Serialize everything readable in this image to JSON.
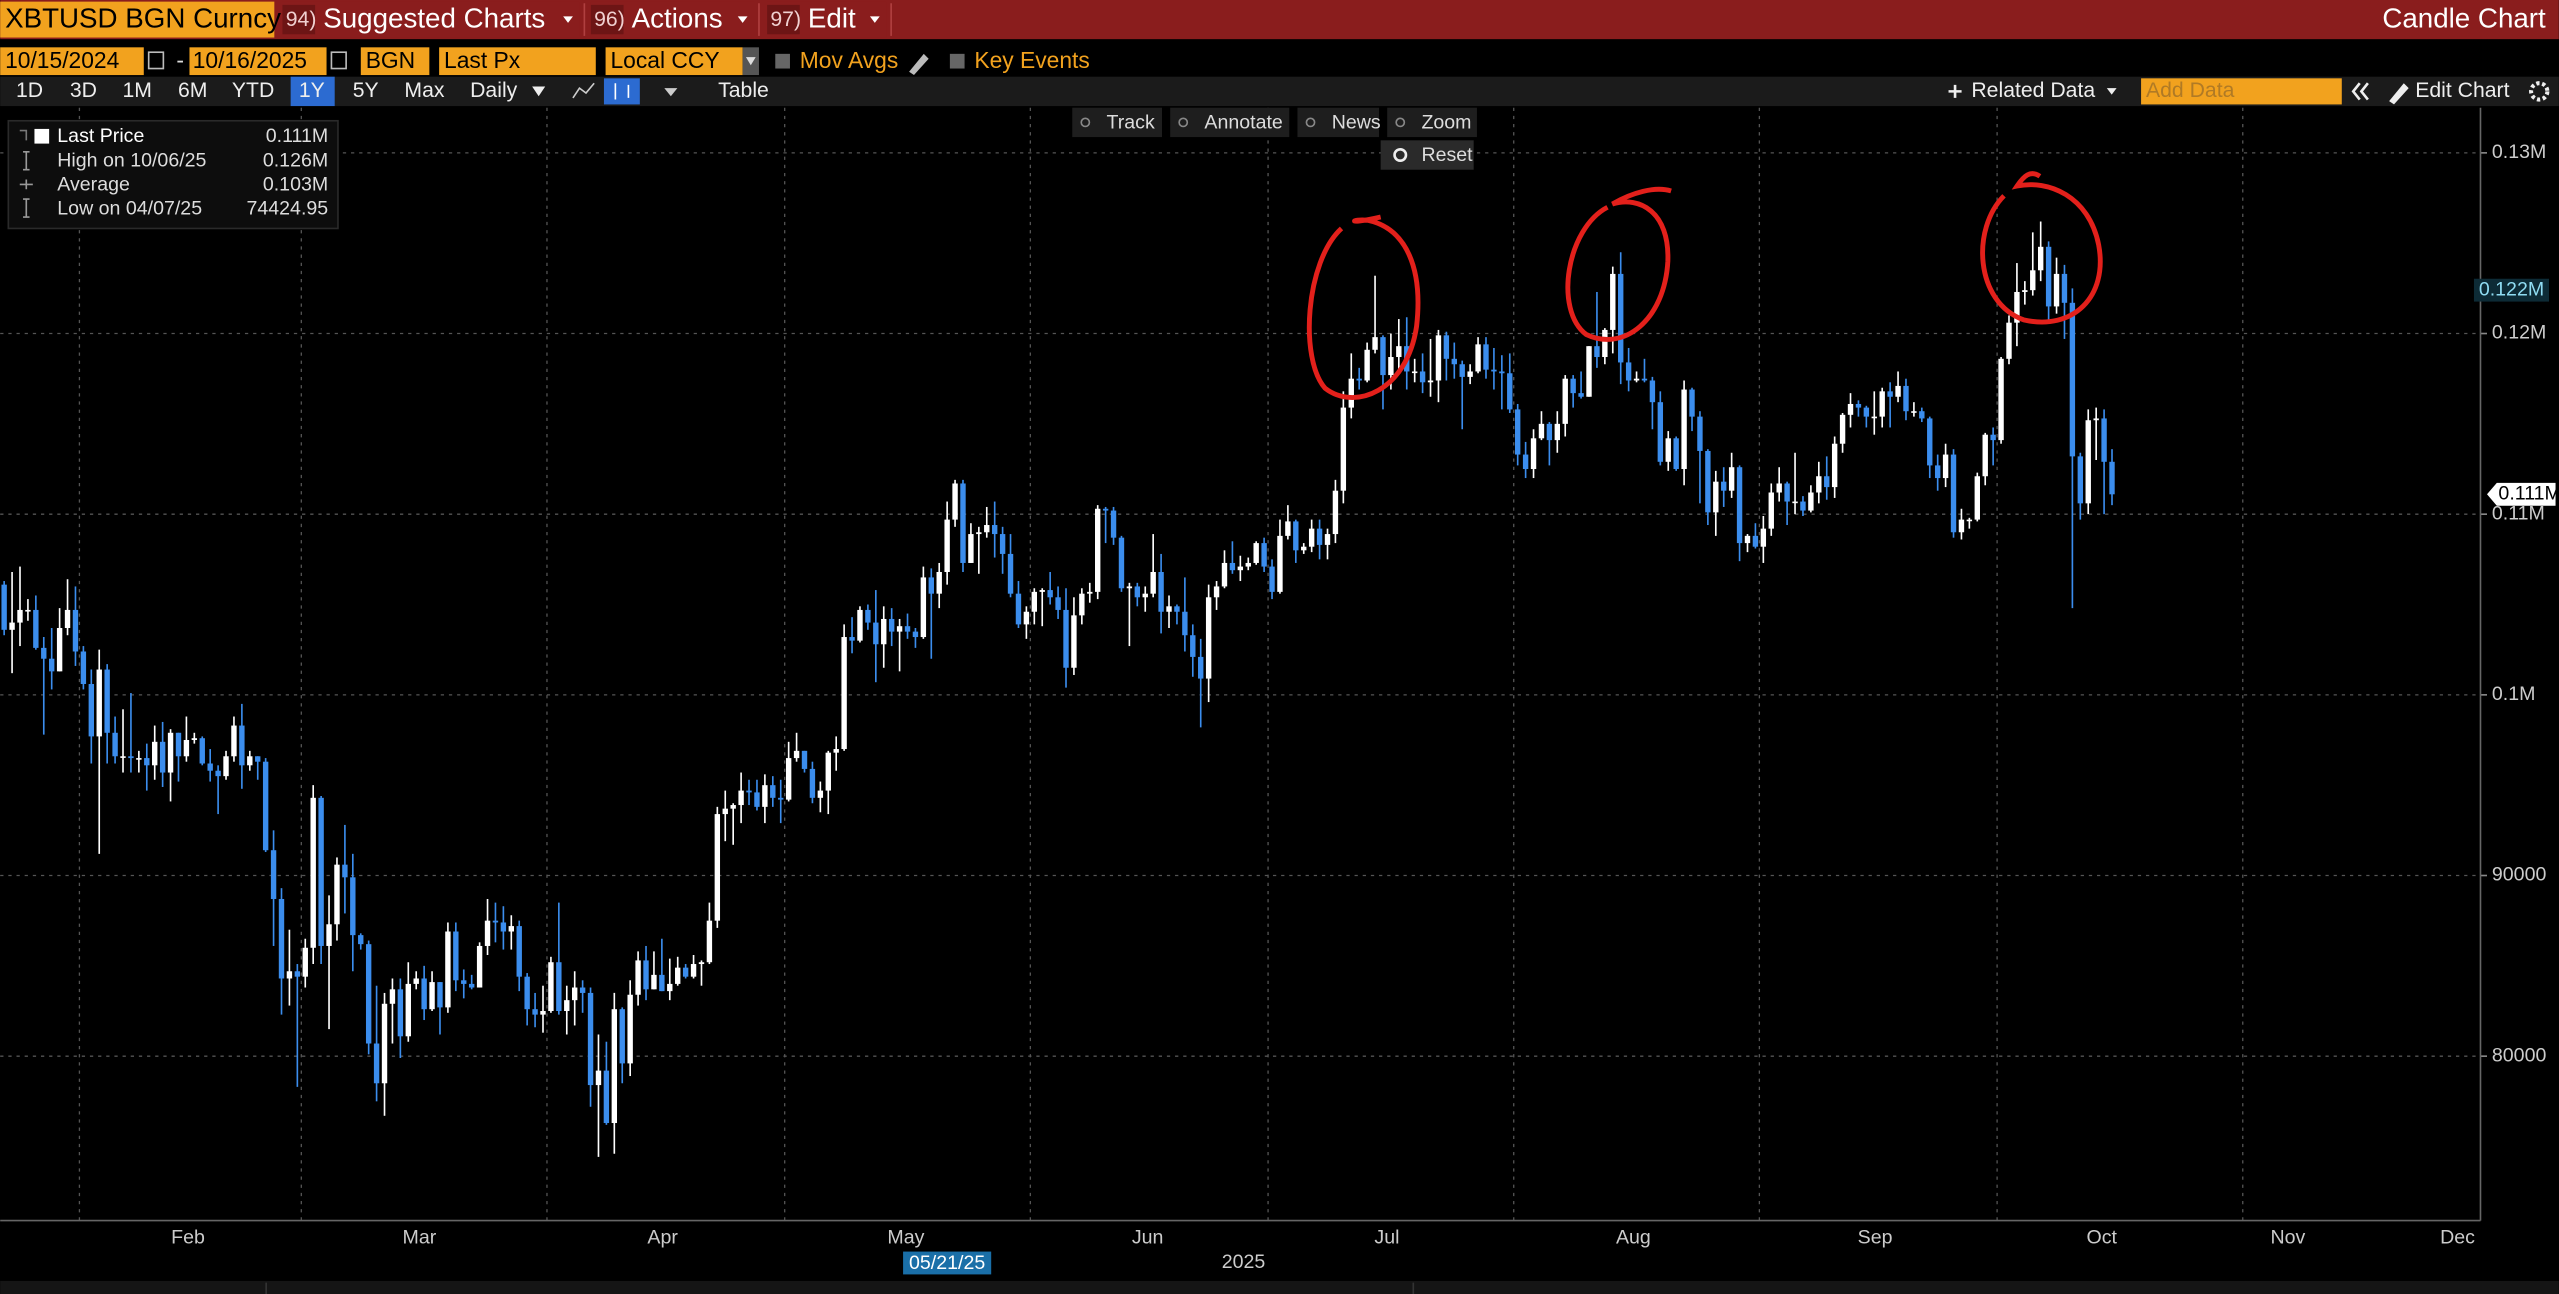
{
  "header": {
    "ticker": "XBTUSD BGN Curncy",
    "menus": [
      {
        "num": "94)",
        "label": "Suggested Charts"
      },
      {
        "num": "96)",
        "label": "Actions"
      },
      {
        "num": "97)",
        "label": "Edit"
      }
    ],
    "chart_kind": "Candle Chart"
  },
  "controls": {
    "start_date": "10/15/2024",
    "date_separator": "-",
    "end_date": "10/16/2025",
    "source": "BGN",
    "field": "Last Px",
    "currency": "Local CCY",
    "options": [
      "Mov Avgs",
      "Key Events"
    ],
    "periods": [
      "1D",
      "3D",
      "1M",
      "6M",
      "YTD",
      "1Y",
      "5Y",
      "Max"
    ],
    "frequency": "Daily",
    "table": "Table",
    "related": "Related Data",
    "add_data": "Add Data",
    "edit_chart": "Edit Chart",
    "chart_tools": [
      "Track",
      "Annotate",
      "News",
      "Zoom"
    ],
    "reset": "Reset"
  },
  "legend": {
    "items": [
      {
        "label": "Last Price",
        "value": "0.111M"
      },
      {
        "label": "High on 10/06/25",
        "value": "0.126M"
      },
      {
        "label": "Average",
        "value": "0.103M"
      },
      {
        "label": "Low on 04/07/25",
        "value": "74424.95"
      }
    ]
  },
  "chart_data": {
    "type": "candlestick",
    "up_color": "#ffffff",
    "down_color": "#3b8ded",
    "grid": true,
    "xlim": [
      -0.5,
      312.5
    ],
    "xgrid": [
      9.5,
      37.5,
      68.5,
      98.5,
      129.5,
      159.5,
      190.5,
      221.5,
      251.5,
      282.5
    ],
    "xticks": [
      {
        "value": 23.2,
        "label": "Feb"
      },
      {
        "value": 52.4,
        "label": "Mar"
      },
      {
        "value": 83.1,
        "label": "Apr"
      },
      {
        "value": 113.8,
        "label": "May"
      },
      {
        "value": 144.3,
        "label": "Jun"
      },
      {
        "value": 174.5,
        "label": "Jul"
      },
      {
        "value": 205.6,
        "label": "Aug"
      },
      {
        "value": 236.1,
        "label": "Sep"
      },
      {
        "value": 264.7,
        "label": "Oct"
      },
      {
        "value": 288.2,
        "label": "Nov"
      },
      {
        "value": 309.6,
        "label": "Dec"
      }
    ],
    "x_year_label": {
      "value": 156.4,
      "label": "2025"
    },
    "cursor": {
      "value": 119,
      "label": "05/21/25"
    },
    "ylim": [
      70900,
      132500
    ],
    "yticks": [
      {
        "value": 130000,
        "label": "0.13M"
      },
      {
        "value": 120000,
        "label": "0.12M"
      },
      {
        "value": 110000,
        "label": "0.11M"
      },
      {
        "value": 100000,
        "label": "0.1M"
      },
      90000,
      80000
    ],
    "last_marker": {
      "value": 111100,
      "label": "0.111M"
    },
    "cursor_marker": {
      "value": 122400,
      "label": "0.122M"
    },
    "open": [
      106100,
      103600,
      104000,
      104700,
      104700,
      102600,
      102000,
      101300,
      103700,
      104700,
      102400,
      100600,
      97700,
      101400,
      97900,
      96600,
      96600,
      96500,
      96500,
      96100,
      97400,
      95700,
      97900,
      96600,
      97500,
      97600,
      96200,
      95800,
      95500,
      96600,
      98300,
      96100,
      96600,
      96300,
      91400,
      88700,
      84300,
      84700,
      84400,
      86000,
      94300,
      86100,
      87300,
      90600,
      89900,
      86700,
      86200,
      80700,
      78500,
      82900,
      83700,
      81100,
      84000,
      84300,
      82600,
      84100,
      82700,
      86900,
      84200,
      84000,
      83800,
      86100,
      87500,
      87400,
      86900,
      87200,
      84400,
      82600,
      82300,
      82500,
      85200,
      82500,
      83100,
      83800,
      83500,
      78400,
      79200,
      76300,
      82600,
      79600,
      83400,
      85300,
      83700,
      84500,
      83600,
      84000,
      84900,
      84400,
      85100,
      85200,
      87500,
      93400,
      93700,
      93900,
      94700,
      94600,
      93800,
      95000,
      94300,
      94200,
      96500,
      96900,
      95900,
      94300,
      94700,
      96800,
      97000,
      103200,
      103000,
      104700,
      104000,
      102800,
      104200,
      103500,
      103800,
      103500,
      103200,
      106500,
      105600,
      106800,
      109700,
      111700,
      107300,
      108900,
      109000,
      109400,
      108900,
      107800,
      105600,
      103900,
      104600,
      105700,
      105800,
      105400,
      104700,
      101500,
      104400,
      105600,
      105700,
      110300,
      110200,
      108700,
      105900,
      106000,
      105400,
      105600,
      106800,
      104600,
      104900,
      104600,
      103300,
      102100,
      100900,
      105400,
      106000,
      107300,
      106900,
      107100,
      107300,
      108400,
      107100,
      105700,
      108800,
      109600,
      108000,
      108200,
      109200,
      108300,
      108900,
      111300,
      115900,
      117500,
      117400,
      119100,
      119800,
      117700,
      118700,
      119300,
      117900,
      117900,
      117300,
      117400,
      119900,
      118600,
      118300,
      117600,
      117900,
      119400,
      118000,
      117900,
      117800,
      115800,
      113300,
      112500,
      114200,
      115000,
      114100,
      115000,
      117500,
      116700,
      116500,
      119300,
      118700,
      120200,
      123300,
      118400,
      117400,
      117500,
      117400,
      116200,
      112900,
      114200,
      112500,
      116900,
      115400,
      113500,
      110100,
      111800,
      111300,
      112600,
      108400,
      108800,
      108200,
      109200,
      111200,
      111700,
      110700,
      110700,
      110200,
      111200,
      112100,
      111500,
      113900,
      115500,
      116100,
      115900,
      115400,
      115400,
      116800,
      116500,
      117100,
      115700,
      115700,
      115300,
      112700,
      112000,
      113300,
      109000,
      109700,
      109700,
      112100,
      114400,
      114100,
      118600,
      120600,
      122300,
      122400,
      123500,
      124800,
      121500,
      123300,
      121700,
      113200,
      110600,
      115200,
      115300,
      112900
    ],
    "high": [
      106300,
      106800,
      107100,
      105300,
      105500,
      103200,
      103700,
      104800,
      106400,
      106000,
      102700,
      101400,
      102500,
      101700,
      98800,
      99200,
      100100,
      96900,
      97300,
      98300,
      98500,
      98100,
      97900,
      98800,
      97900,
      97700,
      97000,
      96100,
      96900,
      98800,
      99500,
      96900,
      96600,
      96500,
      92500,
      89300,
      87000,
      85100,
      86500,
      95000,
      94400,
      88900,
      91000,
      92800,
      91200,
      86800,
      86400,
      83900,
      83500,
      84300,
      84300,
      85200,
      84700,
      85000,
      84700,
      84100,
      87400,
      87400,
      84800,
      84500,
      86300,
      88700,
      88500,
      88300,
      87800,
      87500,
      84600,
      83500,
      83900,
      85500,
      88500,
      83900,
      84700,
      84200,
      83800,
      81200,
      80800,
      83500,
      82700,
      84200,
      85800,
      86100,
      85800,
      86500,
      85400,
      85500,
      85100,
      85600,
      85300,
      88500,
      93800,
      94700,
      94000,
      95700,
      95300,
      95300,
      95600,
      95500,
      95300,
      97400,
      97900,
      96900,
      96300,
      95200,
      96900,
      97700,
      103900,
      104300,
      104900,
      105000,
      105800,
      104900,
      104800,
      104200,
      104500,
      103700,
      107100,
      107000,
      107300,
      110700,
      111900,
      111900,
      109500,
      109300,
      110400,
      110700,
      109300,
      108900,
      106300,
      104900,
      105900,
      105900,
      106800,
      106000,
      105900,
      105400,
      105900,
      106200,
      110500,
      110400,
      110400,
      108800,
      106200,
      106200,
      106000,
      108900,
      107800,
      105500,
      105000,
      106500,
      103900,
      103100,
      106100,
      106300,
      108000,
      108500,
      107700,
      107600,
      108500,
      108700,
      107500,
      109700,
      110500,
      109700,
      108400,
      109700,
      109700,
      109200,
      111900,
      116800,
      118900,
      118100,
      119500,
      123200,
      119900,
      120000,
      120800,
      120900,
      118600,
      118900,
      119700,
      120200,
      120100,
      119500,
      118500,
      118300,
      119800,
      119800,
      119200,
      118800,
      118900,
      116100,
      114000,
      114700,
      115700,
      115100,
      115700,
      117700,
      117700,
      117900,
      119300,
      122300,
      120300,
      123700,
      124500,
      119200,
      117900,
      118600,
      117600,
      116800,
      114600,
      114300,
      117400,
      117000,
      115700,
      113600,
      112400,
      112600,
      113400,
      112700,
      108900,
      109500,
      109900,
      111700,
      112600,
      111800,
      113400,
      111000,
      111600,
      112900,
      113200,
      114300,
      115600,
      116700,
      116300,
      116000,
      116800,
      117000,
      117300,
      117900,
      117500,
      116200,
      115900,
      115400,
      113300,
      113900,
      113600,
      110300,
      109800,
      112300,
      114500,
      114800,
      118700,
      121000,
      123900,
      122900,
      125600,
      126200,
      125100,
      124200,
      123800,
      122500,
      113400,
      115800,
      115900,
      115800,
      113600
    ],
    "low": [
      103300,
      101200,
      102700,
      104100,
      102500,
      97800,
      100300,
      101300,
      103300,
      101600,
      100300,
      96200,
      91200,
      96200,
      96200,
      95700,
      95700,
      95700,
      94700,
      95300,
      94900,
      94100,
      95200,
      96300,
      97300,
      96100,
      95200,
      93400,
      95300,
      96300,
      94800,
      95800,
      95300,
      91300,
      86100,
      82300,
      82800,
      78300,
      83800,
      85100,
      85100,
      81500,
      86400,
      87900,
      84700,
      85900,
      80100,
      77500,
      76700,
      80700,
      79900,
      80800,
      83700,
      82000,
      82500,
      81200,
      82400,
      83600,
      83200,
      83700,
      83800,
      85600,
      86300,
      85900,
      85900,
      83600,
      81700,
      81600,
      81300,
      82400,
      82300,
      81200,
      81700,
      82400,
      77200,
      74424.95,
      76200,
      74600,
      78500,
      78900,
      82800,
      83100,
      83700,
      83600,
      83100,
      83900,
      84300,
      84300,
      83900,
      85100,
      87100,
      91900,
      91700,
      92900,
      93900,
      93600,
      92900,
      93800,
      92900,
      94100,
      96300,
      95700,
      94000,
      93500,
      93400,
      95800,
      96900,
      102300,
      102900,
      103600,
      100700,
      101500,
      102700,
      101300,
      103100,
      102600,
      103100,
      102000,
      104800,
      106100,
      109300,
      106800,
      107300,
      106700,
      108700,
      107600,
      106700,
      105400,
      103700,
      103100,
      103900,
      103800,
      105000,
      104200,
      100400,
      101100,
      103900,
      105100,
      105300,
      108400,
      108300,
      105700,
      102700,
      104900,
      104600,
      105400,
      103400,
      103700,
      103900,
      102400,
      101000,
      98200,
      99600,
      104700,
      105900,
      106700,
      106300,
      106900,
      107200,
      106800,
      105300,
      105600,
      108600,
      107300,
      107800,
      107900,
      107500,
      107500,
      108400,
      110600,
      115300,
      116900,
      117300,
      118900,
      115800,
      116900,
      117800,
      116900,
      117300,
      116700,
      116500,
      116200,
      117400,
      117500,
      114700,
      117200,
      117800,
      117500,
      116900,
      115800,
      115600,
      112700,
      112000,
      112000,
      114100,
      112700,
      113400,
      114300,
      115900,
      116400,
      116500,
      118100,
      118300,
      118900,
      117200,
      116800,
      117300,
      117300,
      114700,
      112700,
      112400,
      112400,
      111600,
      114600,
      110600,
      109400,
      108800,
      110400,
      110900,
      107400,
      107900,
      108100,
      107300,
      108800,
      110700,
      109400,
      110000,
      109900,
      110100,
      110600,
      110800,
      110900,
      113400,
      114800,
      115400,
      114800,
      114400,
      114800,
      114800,
      116200,
      115200,
      115400,
      115100,
      112000,
      111300,
      111500,
      108700,
      108600,
      109200,
      109600,
      111600,
      112700,
      113900,
      118300,
      119300,
      121600,
      122100,
      122900,
      120600,
      121100,
      119700,
      104800,
      109700,
      110000,
      113000,
      110000,
      110500
    ],
    "close": [
      103600,
      104000,
      104700,
      104700,
      102600,
      102000,
      101300,
      103700,
      104700,
      102400,
      100600,
      97700,
      101400,
      97900,
      96600,
      96600,
      96500,
      96500,
      96100,
      97400,
      95700,
      97900,
      96600,
      97500,
      97600,
      96200,
      95800,
      95500,
      96600,
      98300,
      96100,
      96600,
      96300,
      91400,
      88700,
      84300,
      84700,
      84400,
      86000,
      94300,
      86100,
      87300,
      90600,
      89900,
      86700,
      86200,
      80700,
      78500,
      82900,
      83700,
      81100,
      84000,
      84300,
      82600,
      84100,
      82700,
      86900,
      84200,
      84000,
      83800,
      86100,
      87500,
      87400,
      86900,
      87200,
      84400,
      82600,
      82300,
      82500,
      85200,
      82500,
      83100,
      83800,
      83500,
      78400,
      79200,
      76300,
      82600,
      79600,
      83400,
      85300,
      83700,
      84500,
      83600,
      84000,
      84900,
      84400,
      85100,
      85200,
      87500,
      93400,
      93700,
      93900,
      94700,
      94600,
      93800,
      95000,
      94300,
      94200,
      96500,
      96900,
      95900,
      94300,
      94700,
      96800,
      97000,
      103200,
      103000,
      104700,
      104000,
      102800,
      104200,
      103500,
      103800,
      103500,
      103200,
      106500,
      105600,
      106800,
      109700,
      111700,
      107300,
      108900,
      109000,
      109400,
      108900,
      107800,
      105600,
      103900,
      104600,
      105700,
      105800,
      105400,
      104700,
      101500,
      104400,
      105600,
      105700,
      110300,
      110200,
      108700,
      105900,
      106000,
      105400,
      105600,
      106800,
      104600,
      104900,
      104600,
      103300,
      102100,
      100900,
      105400,
      106000,
      107300,
      106900,
      107100,
      107300,
      108400,
      107100,
      105700,
      108800,
      109600,
      108000,
      108200,
      109200,
      108300,
      108900,
      111300,
      115900,
      117500,
      117400,
      119100,
      119800,
      117700,
      118700,
      119300,
      117900,
      117900,
      117300,
      117400,
      119900,
      118600,
      118300,
      117600,
      117900,
      119400,
      118000,
      117900,
      117800,
      115800,
      113300,
      112500,
      114200,
      115000,
      114100,
      115000,
      117500,
      116700,
      116500,
      119300,
      118700,
      120200,
      123300,
      118400,
      117400,
      117500,
      117400,
      116200,
      112900,
      114200,
      112500,
      116900,
      115400,
      113500,
      110100,
      111800,
      111300,
      112600,
      108400,
      108800,
      108200,
      109200,
      111200,
      111700,
      110700,
      110700,
      110200,
      111200,
      112100,
      111500,
      113900,
      115500,
      116100,
      115900,
      115400,
      115400,
      116800,
      116500,
      117100,
      115700,
      115700,
      115300,
      112700,
      112000,
      113300,
      109000,
      109700,
      109700,
      112100,
      114400,
      114100,
      118600,
      120600,
      122300,
      122400,
      123500,
      124800,
      121500,
      123300,
      121700,
      113200,
      110600,
      115200,
      115300,
      112900,
      111100
    ]
  }
}
